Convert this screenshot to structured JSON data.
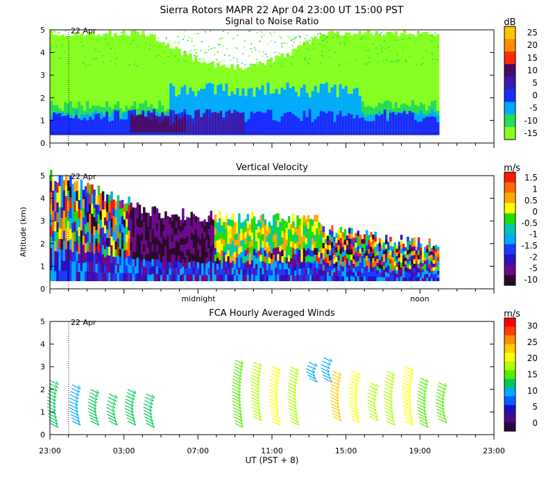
{
  "header": {
    "title": "Sierra Rotors   MAPR 22 Apr 04   23:00 UT   15:00   PST"
  },
  "chart_data": [
    {
      "type": "heatmap",
      "title": "Signal to Noise Ratio",
      "ylabel": "",
      "ylim": [
        0,
        5
      ],
      "yticks": [
        "0",
        "1",
        "2",
        "3",
        "4",
        "5"
      ],
      "date_marker": "22 Apr",
      "colorbar": {
        "unit": "dB",
        "labels": [
          "25",
          "20",
          "15",
          "10",
          "5",
          "0",
          "-5",
          "-10",
          "-15"
        ],
        "colors": [
          "#ffc400",
          "#ff8c00",
          "#ff2a00",
          "#4a0a66",
          "#3b1ab0",
          "#1a2cff",
          "#00aaff",
          "#22dd55",
          "#88ff22"
        ]
      },
      "bands": [
        {
          "color": "#88ff22",
          "y0": 0.35,
          "y1": 5.0
        },
        {
          "color": "#22dd55",
          "y0": 0.35,
          "y1": 1.5
        },
        {
          "color": "#1a2cff",
          "y0": 0.35,
          "y1": 1.1
        },
        {
          "color": "#00aaff",
          "y0": 1.1,
          "y1": 2.2
        }
      ]
    },
    {
      "type": "heatmap",
      "title": "Vertical Velocity",
      "ylabel": "Altitude (km)",
      "ylim": [
        0,
        5
      ],
      "yticks": [
        "0",
        "1",
        "2",
        "3",
        "4",
        "5"
      ],
      "date_marker": "22 Apr",
      "time_labels": [
        "midnight",
        "noon"
      ],
      "colorbar": {
        "unit": "m/s",
        "labels": [
          "1.5",
          "1",
          "0.5",
          "0",
          "-0.5",
          "-1",
          "-1.5",
          "-2",
          "-5",
          "-10"
        ],
        "colors": [
          "#ff1a00",
          "#ff6a00",
          "#ffaa00",
          "#ffff00",
          "#22dd00",
          "#00c8aa",
          "#00aaff",
          "#1a3cff",
          "#2a10c0",
          "#6a0a8a",
          "#2a0a2a"
        ]
      }
    },
    {
      "type": "scatter",
      "title": "FCA Hourly Averaged Winds",
      "xlabel": "UT  (PST + 8)",
      "ylim": [
        0,
        5
      ],
      "yticks": [
        "0",
        "1",
        "2",
        "3",
        "4",
        "5"
      ],
      "xticks": [
        "23:00",
        "03:00",
        "07:00",
        "11:00",
        "15:00",
        "19:00",
        "23:00"
      ],
      "date_marker": "22 Apr",
      "colorbar": {
        "unit": "m/s",
        "labels": [
          "30",
          "25",
          "20",
          "15",
          "10",
          "5",
          "0"
        ],
        "colors": [
          "#ff0000",
          "#ff4000",
          "#ff8c00",
          "#ffcc00",
          "#ffff00",
          "#b0ff00",
          "#55ee00",
          "#00cc55",
          "#00aaff",
          "#0060ff",
          "#1a10c0",
          "#4a0a80",
          "#2a0a40"
        ]
      },
      "wind_profiles": [
        {
          "hour": 0,
          "bottom": 0.5,
          "top": 2.4,
          "speed": 12
        },
        {
          "hour": 1.2,
          "bottom": 0.6,
          "top": 2.2,
          "speed": 11
        },
        {
          "hour": 2.2,
          "bottom": 0.6,
          "top": 2.0,
          "speed": 12
        },
        {
          "hour": 3.2,
          "bottom": 0.6,
          "top": 1.8,
          "speed": 12
        },
        {
          "hour": 4.2,
          "bottom": 0.6,
          "top": 2.0,
          "speed": 13
        },
        {
          "hour": 5.2,
          "bottom": 0.5,
          "top": 1.8,
          "speed": 12
        },
        {
          "hour": 10.0,
          "bottom": 0.5,
          "top": 3.3,
          "speed": 16
        },
        {
          "hour": 11.0,
          "bottom": 0.8,
          "top": 3.2,
          "speed": 17
        },
        {
          "hour": 12.0,
          "bottom": 0.6,
          "top": 3.0,
          "speed": 19
        },
        {
          "hour": 13.0,
          "bottom": 0.6,
          "top": 3.0,
          "speed": 18
        },
        {
          "hour": 14.0,
          "bottom": 2.5,
          "top": 3.2,
          "speed": 10
        },
        {
          "hour": 14.8,
          "bottom": 2.5,
          "top": 3.4,
          "speed": 9
        },
        {
          "hour": 15.3,
          "bottom": 0.8,
          "top": 2.8,
          "speed": 23
        },
        {
          "hour": 16.3,
          "bottom": 0.7,
          "top": 2.8,
          "speed": 19
        },
        {
          "hour": 17.3,
          "bottom": 0.8,
          "top": 2.3,
          "speed": 17
        },
        {
          "hour": 18.2,
          "bottom": 0.6,
          "top": 2.8,
          "speed": 18
        },
        {
          "hour": 19.2,
          "bottom": 0.6,
          "top": 3.0,
          "speed": 19
        },
        {
          "hour": 20.0,
          "bottom": 0.5,
          "top": 2.5,
          "speed": 16
        },
        {
          "hour": 21.0,
          "bottom": 0.7,
          "top": 2.3,
          "speed": 15
        }
      ]
    }
  ]
}
